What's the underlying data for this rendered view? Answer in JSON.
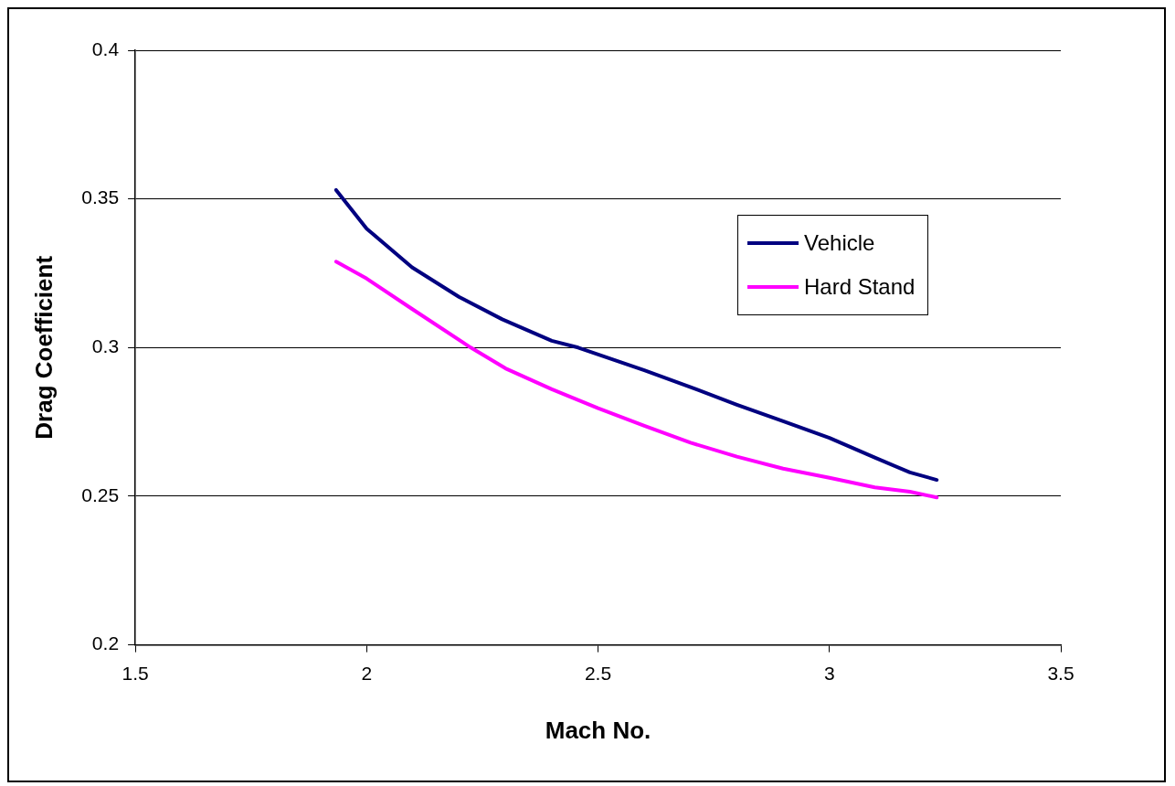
{
  "chart_data": {
    "type": "line",
    "xlabel": "Mach No.",
    "ylabel": "Drag Coefficient",
    "xlim": [
      1.5,
      3.5
    ],
    "xticks": [
      1.5,
      2,
      2.5,
      3,
      3.5
    ],
    "ylim": [
      0.2,
      0.4
    ],
    "yticks": [
      0.2,
      0.25,
      0.3,
      0.35,
      0.4
    ],
    "grid": "y",
    "legend": "right",
    "marker": "none",
    "line_style": "solid",
    "series": [
      {
        "name": "Vehicle",
        "color": "#000080",
        "x": [
          1.934,
          2.0,
          2.098,
          2.2,
          2.293,
          2.4,
          2.457,
          2.6,
          2.7,
          2.8,
          2.9,
          3.0,
          3.098,
          3.174,
          3.232
        ],
        "values": [
          0.353,
          0.34,
          0.327,
          0.317,
          0.3095,
          0.3023,
          0.3,
          0.2924,
          0.2867,
          0.2808,
          0.2752,
          0.2696,
          0.263,
          0.258,
          0.2555
        ]
      },
      {
        "name": "Hard Stand",
        "color": "#ff00ff",
        "x": [
          1.934,
          2.0,
          2.098,
          2.225,
          2.3,
          2.4,
          2.5,
          2.6,
          2.7,
          2.8,
          2.9,
          3.0,
          3.098,
          3.174,
          3.232
        ],
        "values": [
          0.3289,
          0.3232,
          0.313,
          0.3,
          0.293,
          0.286,
          0.2796,
          0.2737,
          0.268,
          0.2633,
          0.2593,
          0.2562,
          0.253,
          0.2515,
          0.2496
        ]
      }
    ]
  }
}
